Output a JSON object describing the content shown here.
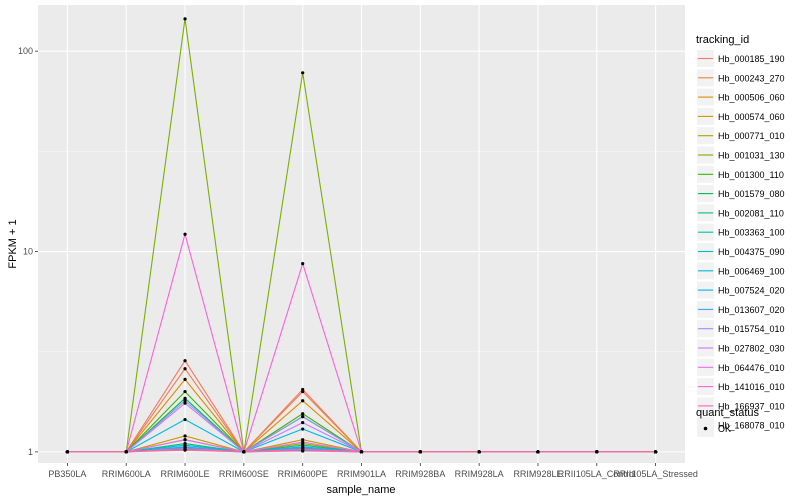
{
  "chart_data": {
    "type": "line",
    "title": "",
    "xlabel": "sample_name",
    "ylabel": "FPKM + 1",
    "y_scale": "log10",
    "ylim": [
      0.88,
      170
    ],
    "y_ticks": [
      1,
      10,
      100
    ],
    "y_tick_labels": [
      "1",
      "10",
      "100"
    ],
    "grid": true,
    "categories": [
      "PB350LA",
      "RRIM600LA",
      "RRIM600LE",
      "RRIM600SE",
      "RRIM600PE",
      "RRIM901LA",
      "RRIM928BA",
      "RRIM928LA",
      "RRIM928LE",
      "RRII105LA_Control",
      "RRII105LA_Stressed"
    ],
    "category_labels": [
      "PB350LA",
      "RRIM600LA",
      "RRIM600LE",
      "RRIM600SE",
      "RRIM600PE",
      "RRIM901LA",
      "RRIM928BA",
      "RRIM928LA",
      "RRIM928LE",
      "RRII105LA_Control",
      "RRII105LA_Stressed"
    ],
    "legend": {
      "title": "tracking_id",
      "position": "right"
    },
    "legend2": {
      "title": "quant_status",
      "items": [
        "OK"
      ]
    },
    "series": [
      {
        "name": "Hb_000185_190",
        "color": "#F8766D",
        "values": [
          1,
          1,
          2.85,
          1,
          2.05,
          1,
          1,
          1,
          1,
          1,
          1
        ]
      },
      {
        "name": "Hb_000243_270",
        "color": "#EE8043",
        "values": [
          1,
          1,
          2.6,
          1,
          2.0,
          1,
          1,
          1,
          1,
          1,
          1
        ]
      },
      {
        "name": "Hb_000506_060",
        "color": "#DE8C00",
        "values": [
          1,
          1,
          2.3,
          1,
          1.8,
          1,
          1,
          1,
          1,
          1,
          1
        ]
      },
      {
        "name": "Hb_000574_060",
        "color": "#C99800",
        "values": [
          1,
          1,
          1.2,
          1,
          1.15,
          1,
          1,
          1,
          1,
          1,
          1
        ]
      },
      {
        "name": "Hb_000771_010",
        "color": "#AEA200",
        "values": [
          1,
          1,
          1.15,
          1,
          1.1,
          1,
          1,
          1,
          1,
          1,
          1
        ]
      },
      {
        "name": "Hb_001031_130",
        "color": "#7CAE00",
        "values": [
          1,
          1,
          145,
          1,
          78,
          1,
          1,
          1,
          1,
          1,
          1
        ]
      },
      {
        "name": "Hb_001300_110",
        "color": "#39B600",
        "values": [
          1,
          1,
          2.0,
          1,
          1.55,
          1,
          1,
          1,
          1,
          1,
          1
        ]
      },
      {
        "name": "Hb_001579_080",
        "color": "#00BB4E",
        "values": [
          1,
          1,
          1.85,
          1,
          1.5,
          1,
          1,
          1,
          1,
          1,
          1
        ]
      },
      {
        "name": "Hb_002081_110",
        "color": "#00BF7D",
        "values": [
          1,
          1,
          1.1,
          1,
          1.08,
          1,
          1,
          1,
          1,
          1,
          1
        ]
      },
      {
        "name": "Hb_003363_100",
        "color": "#00C1A3",
        "values": [
          1,
          1,
          1.05,
          1,
          1.04,
          1,
          1,
          1,
          1,
          1,
          1
        ]
      },
      {
        "name": "Hb_004375_090",
        "color": "#00BFC4",
        "values": [
          1,
          1,
          1.08,
          1,
          1.06,
          1,
          1,
          1,
          1,
          1,
          1
        ]
      },
      {
        "name": "Hb_006469_100",
        "color": "#00BAE0",
        "values": [
          1,
          1,
          1.45,
          1,
          1.3,
          1,
          1,
          1,
          1,
          1,
          1
        ]
      },
      {
        "name": "Hb_007524_020",
        "color": "#00B0F6",
        "values": [
          1,
          1,
          1.03,
          1,
          1.02,
          1,
          1,
          1,
          1,
          1,
          1
        ]
      },
      {
        "name": "Hb_013607_020",
        "color": "#35A2FF",
        "values": [
          1,
          1,
          1.06,
          1,
          1.05,
          1,
          1,
          1,
          1,
          1,
          1
        ]
      },
      {
        "name": "Hb_015754_010",
        "color": "#9590FF",
        "values": [
          1,
          1,
          1.8,
          1,
          1.5,
          1,
          1,
          1,
          1,
          1,
          1
        ]
      },
      {
        "name": "Hb_027802_030",
        "color": "#C77CFF",
        "values": [
          1,
          1,
          1.75,
          1,
          1.4,
          1,
          1,
          1,
          1,
          1,
          1
        ]
      },
      {
        "name": "Hb_064476_010",
        "color": "#E76BF3",
        "values": [
          1,
          1,
          1.15,
          1,
          1.12,
          1,
          1,
          1,
          1,
          1,
          1
        ]
      },
      {
        "name": "Hb_141016_010",
        "color": "#FA62DB",
        "values": [
          1,
          1,
          12.2,
          1,
          8.7,
          1,
          1,
          1,
          1,
          1,
          1
        ]
      },
      {
        "name": "Hb_166937_010",
        "color": "#FF62BC",
        "values": [
          1,
          1,
          1.04,
          1,
          1.03,
          1,
          1,
          1,
          1,
          1,
          1
        ]
      },
      {
        "name": "Hb_168078_010",
        "color": "#FF6C91",
        "values": [
          1,
          1,
          1.02,
          1,
          1.01,
          1,
          1,
          1,
          1,
          1,
          1
        ]
      }
    ]
  }
}
